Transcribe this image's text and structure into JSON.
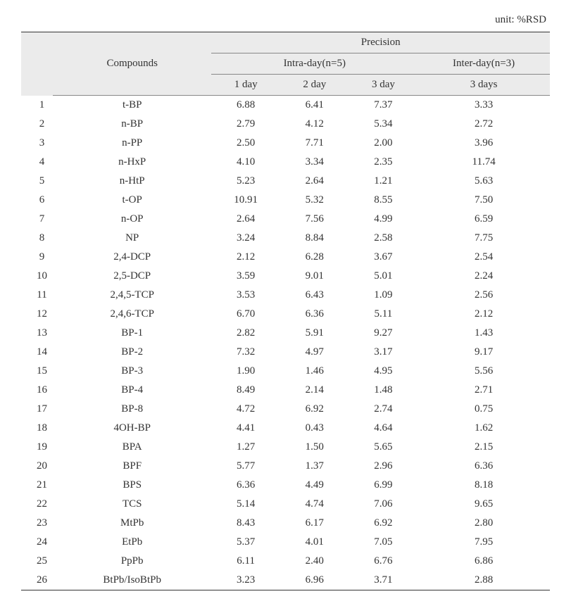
{
  "unit_label": "unit: %RSD",
  "headers": {
    "compounds": "Compounds",
    "precision": "Precision",
    "intra_day": "Intra-day(n=5)",
    "inter_day": "Inter-day(n=3)",
    "day1": "1 day",
    "day2": "2 day",
    "day3": "3 day",
    "days3": "3 days"
  },
  "rows": [
    {
      "idx": "1",
      "compound": "t-BP",
      "d1": "6.88",
      "d2": "6.41",
      "d3": "7.37",
      "inter": "3.33"
    },
    {
      "idx": "2",
      "compound": "n-BP",
      "d1": "2.79",
      "d2": "4.12",
      "d3": "5.34",
      "inter": "2.72"
    },
    {
      "idx": "3",
      "compound": "n-PP",
      "d1": "2.50",
      "d2": "7.71",
      "d3": "2.00",
      "inter": "3.96"
    },
    {
      "idx": "4",
      "compound": "n-HxP",
      "d1": "4.10",
      "d2": "3.34",
      "d3": "2.35",
      "inter": "11.74"
    },
    {
      "idx": "5",
      "compound": "n-HtP",
      "d1": "5.23",
      "d2": "2.64",
      "d3": "1.21",
      "inter": "5.63"
    },
    {
      "idx": "6",
      "compound": "t-OP",
      "d1": "10.91",
      "d2": "5.32",
      "d3": "8.55",
      "inter": "7.50"
    },
    {
      "idx": "7",
      "compound": "n-OP",
      "d1": "2.64",
      "d2": "7.56",
      "d3": "4.99",
      "inter": "6.59"
    },
    {
      "idx": "8",
      "compound": "NP",
      "d1": "3.24",
      "d2": "8.84",
      "d3": "2.58",
      "inter": "7.75"
    },
    {
      "idx": "9",
      "compound": "2,4-DCP",
      "d1": "2.12",
      "d2": "6.28",
      "d3": "3.67",
      "inter": "2.54"
    },
    {
      "idx": "10",
      "compound": "2,5-DCP",
      "d1": "3.59",
      "d2": "9.01",
      "d3": "5.01",
      "inter": "2.24"
    },
    {
      "idx": "11",
      "compound": "2,4,5-TCP",
      "d1": "3.53",
      "d2": "6.43",
      "d3": "1.09",
      "inter": "2.56"
    },
    {
      "idx": "12",
      "compound": "2,4,6-TCP",
      "d1": "6.70",
      "d2": "6.36",
      "d3": "5.11",
      "inter": "2.12"
    },
    {
      "idx": "13",
      "compound": "BP-1",
      "d1": "2.82",
      "d2": "5.91",
      "d3": "9.27",
      "inter": "1.43"
    },
    {
      "idx": "14",
      "compound": "BP-2",
      "d1": "7.32",
      "d2": "4.97",
      "d3": "3.17",
      "inter": "9.17"
    },
    {
      "idx": "15",
      "compound": "BP-3",
      "d1": "1.90",
      "d2": "1.46",
      "d3": "4.95",
      "inter": "5.56"
    },
    {
      "idx": "16",
      "compound": "BP-4",
      "d1": "8.49",
      "d2": "2.14",
      "d3": "1.48",
      "inter": "2.71"
    },
    {
      "idx": "17",
      "compound": "BP-8",
      "d1": "4.72",
      "d2": "6.92",
      "d3": "2.74",
      "inter": "0.75"
    },
    {
      "idx": "18",
      "compound": "4OH-BP",
      "d1": "4.41",
      "d2": "0.43",
      "d3": "4.64",
      "inter": "1.62"
    },
    {
      "idx": "19",
      "compound": "BPA",
      "d1": "1.27",
      "d2": "1.50",
      "d3": "5.65",
      "inter": "2.15"
    },
    {
      "idx": "20",
      "compound": "BPF",
      "d1": "5.77",
      "d2": "1.37",
      "d3": "2.96",
      "inter": "6.36"
    },
    {
      "idx": "21",
      "compound": "BPS",
      "d1": "6.36",
      "d2": "4.49",
      "d3": "6.99",
      "inter": "8.18"
    },
    {
      "idx": "22",
      "compound": "TCS",
      "d1": "5.14",
      "d2": "4.74",
      "d3": "7.06",
      "inter": "9.65"
    },
    {
      "idx": "23",
      "compound": "MtPb",
      "d1": "8.43",
      "d2": "6.17",
      "d3": "6.92",
      "inter": "2.80"
    },
    {
      "idx": "24",
      "compound": "EtPb",
      "d1": "5.37",
      "d2": "4.01",
      "d3": "7.05",
      "inter": "7.95"
    },
    {
      "idx": "25",
      "compound": "PpPb",
      "d1": "6.11",
      "d2": "2.40",
      "d3": "6.76",
      "inter": "6.86"
    },
    {
      "idx": "26",
      "compound": "BtPb/IsoBtPb",
      "d1": "3.23",
      "d2": "6.96",
      "d3": "3.71",
      "inter": "2.88"
    }
  ]
}
